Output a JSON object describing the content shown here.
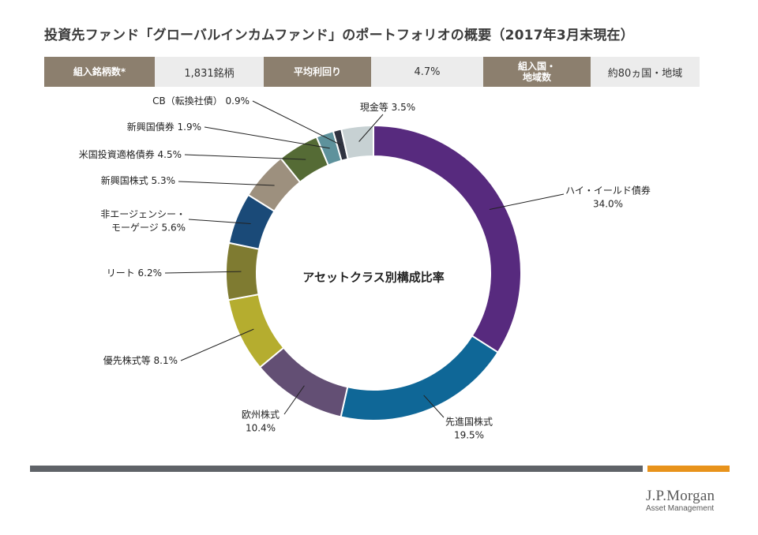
{
  "header": {
    "title": "投資先ファンド「グローバルインカムファンド」のポートフォリオの概要（2017年3月末現在）"
  },
  "summary": [
    {
      "label": "組入銘柄数*",
      "value": "1,831銘柄"
    },
    {
      "label": "平均利回り",
      "value": "4.7%"
    },
    {
      "label": "組入国・\n地域数",
      "value": "約80ヵ国・地域"
    }
  ],
  "chart_data": {
    "type": "pie",
    "donut": true,
    "center_label": "アセットクラス別構成比率",
    "slices": [
      {
        "name": "ハイ・イールド債券",
        "value": 34.0,
        "label_lines": [
          "ハイ・イールド債券",
          "34.0%"
        ],
        "color": "#572a7e"
      },
      {
        "name": "先進国株式",
        "value": 19.5,
        "label_lines": [
          "先進国株式",
          "19.5%"
        ],
        "color": "#0f6797"
      },
      {
        "name": "欧州株式",
        "value": 10.4,
        "label_lines": [
          "欧州株式",
          "10.4%"
        ],
        "color": "#634f74"
      },
      {
        "name": "優先株式等",
        "value": 8.1,
        "label_lines": [
          "優先株式等 8.1%"
        ],
        "color": "#b5ad2f"
      },
      {
        "name": "リート",
        "value": 6.2,
        "label_lines": [
          "リート 6.2%"
        ],
        "color": "#7f7b31"
      },
      {
        "name": "非エージェンシー・モーゲージ",
        "value": 5.6,
        "label_lines": [
          "非エージェンシー・",
          "モーゲージ 5.6%"
        ],
        "color": "#1a4a78"
      },
      {
        "name": "新興国株式",
        "value": 5.3,
        "label_lines": [
          "新興国株式 5.3%"
        ],
        "color": "#9d907e"
      },
      {
        "name": "米国投資適格債券",
        "value": 4.5,
        "label_lines": [
          "米国投資適格債券 4.5%"
        ],
        "color": "#556b35"
      },
      {
        "name": "新興国債券",
        "value": 1.9,
        "label_lines": [
          "新興国債券 1.9%"
        ],
        "color": "#5e929c"
      },
      {
        "name": "CB（転換社債）",
        "value": 0.9,
        "label_lines": [
          "CB（転換社債） 0.9%"
        ],
        "color": "#2f3340"
      },
      {
        "name": "現金等",
        "value": 3.5,
        "label_lines": [
          "現金等 3.5%"
        ],
        "color": "#c7d1d3"
      }
    ]
  },
  "footer": {
    "logo_main": "J.P.Morgan",
    "logo_sub": "Asset Management"
  }
}
